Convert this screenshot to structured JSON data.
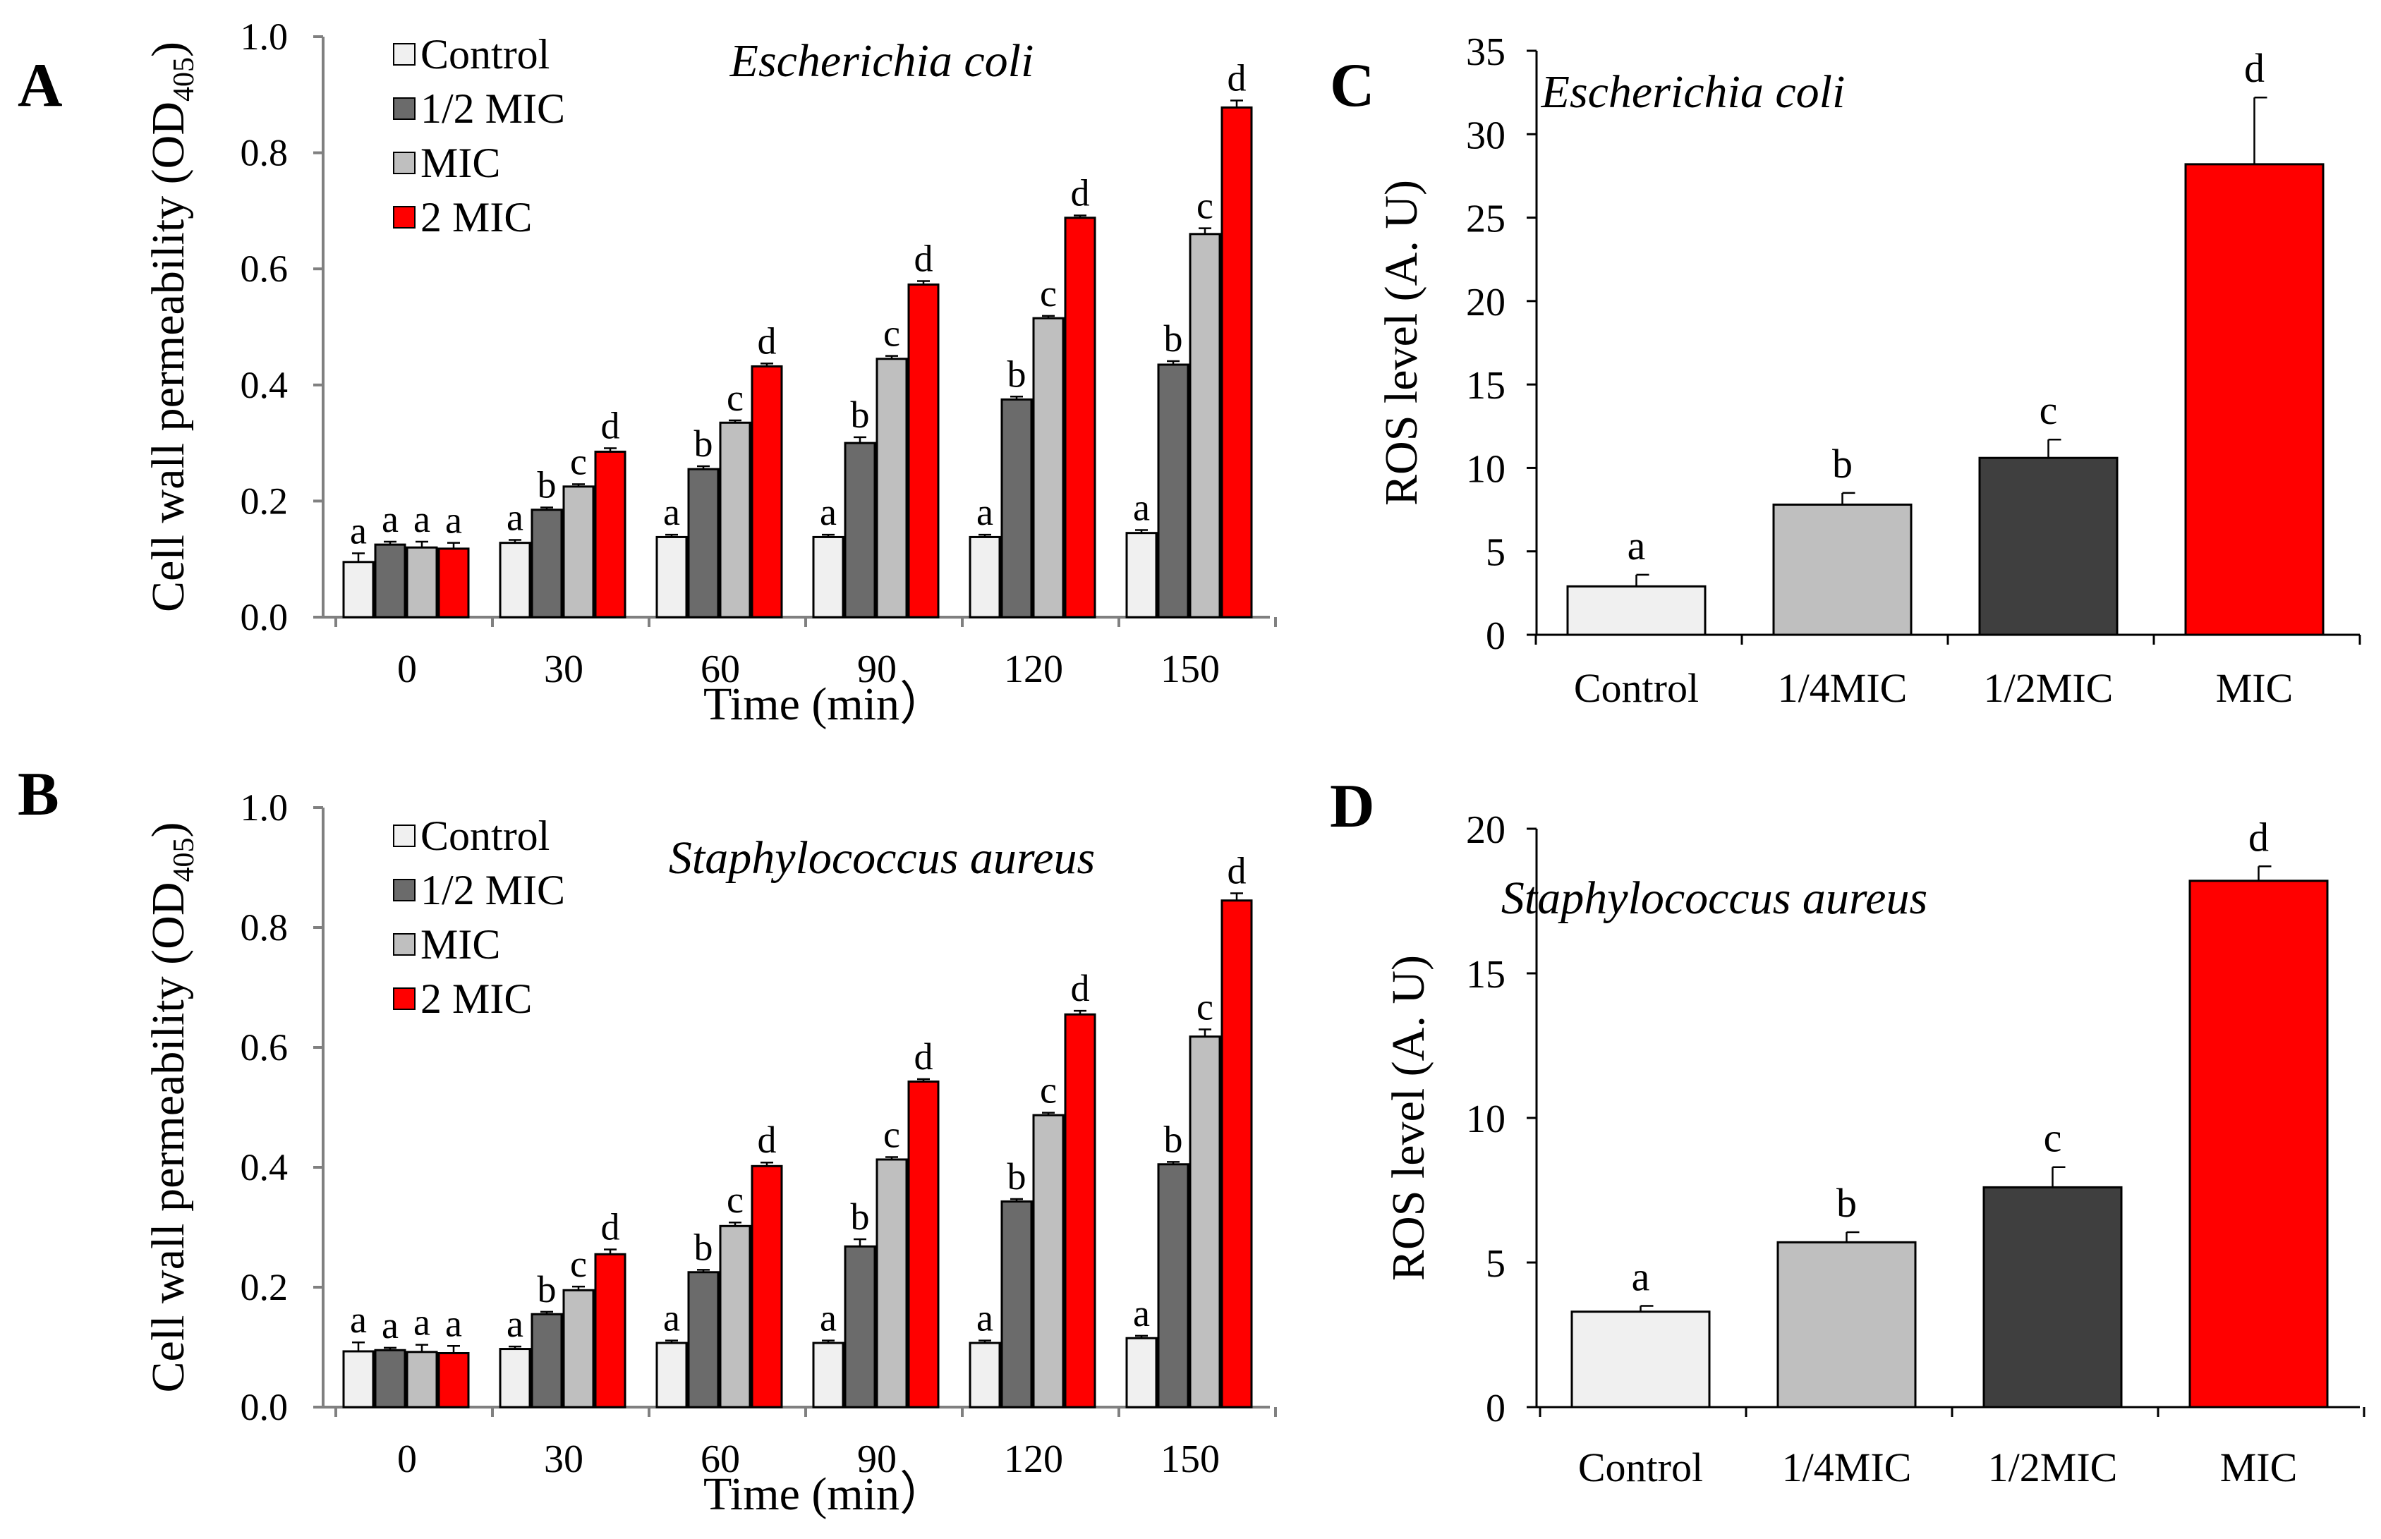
{
  "chart_data": [
    {
      "id": "A",
      "panel_label": "A",
      "type": "bar",
      "title": "Escherichia coli",
      "ylabel_main": "Cell wall permeability (OD",
      "ylabel_sub": "405",
      "ylabel_close": ")",
      "xlabel": "Time (min）",
      "ylim": [
        0,
        1.0
      ],
      "yticks": [
        "0.0",
        "0.2",
        "0.4",
        "0.6",
        "0.8",
        "1.0"
      ],
      "categories": [
        "0",
        "30",
        "60",
        "90",
        "120",
        "150"
      ],
      "legend": {
        "position": "top-left"
      },
      "series": [
        {
          "name": "Control",
          "color": "#f0f0f0",
          "values": [
            0.095,
            0.128,
            0.138,
            0.138,
            0.138,
            0.145
          ],
          "errors": [
            0.015,
            0.005,
            0.004,
            0.004,
            0.004,
            0.005
          ],
          "letters": [
            "a",
            "a",
            "a",
            "a",
            "a",
            "a"
          ]
        },
        {
          "name": "1/2 MIC",
          "color": "#6b6b6b",
          "values": [
            0.125,
            0.185,
            0.255,
            0.3,
            0.375,
            0.435
          ],
          "errors": [
            0.005,
            0.004,
            0.005,
            0.01,
            0.005,
            0.006
          ],
          "letters": [
            "a",
            "b",
            "b",
            "b",
            "b",
            "b"
          ]
        },
        {
          "name": "MIC",
          "color": "#bfbfbf",
          "values": [
            0.12,
            0.225,
            0.335,
            0.445,
            0.515,
            0.66
          ],
          "errors": [
            0.01,
            0.004,
            0.004,
            0.005,
            0.004,
            0.01
          ],
          "letters": [
            "a",
            "c",
            "c",
            "c",
            "c",
            "c"
          ]
        },
        {
          "name": "2 MIC",
          "color": "#ff0000",
          "values": [
            0.118,
            0.285,
            0.432,
            0.573,
            0.688,
            0.878
          ],
          "errors": [
            0.01,
            0.006,
            0.005,
            0.006,
            0.004,
            0.012
          ],
          "letters": [
            "a",
            "d",
            "d",
            "d",
            "d",
            "d"
          ]
        }
      ]
    },
    {
      "id": "B",
      "panel_label": "B",
      "type": "bar",
      "title": "Staphylococcus aureus",
      "ylabel_main": "Cell wall permeability (OD",
      "ylabel_sub": "405",
      "ylabel_close": ")",
      "xlabel": "Time (min）",
      "ylim": [
        0,
        1.0
      ],
      "yticks": [
        "0.0",
        "0.2",
        "0.4",
        "0.6",
        "0.8",
        "1.0"
      ],
      "categories": [
        "0",
        "30",
        "60",
        "90",
        "120",
        "150"
      ],
      "legend": {
        "position": "top-left"
      },
      "series": [
        {
          "name": "Control",
          "color": "#f0f0f0",
          "values": [
            0.093,
            0.097,
            0.107,
            0.107,
            0.107,
            0.115
          ],
          "errors": [
            0.015,
            0.004,
            0.004,
            0.004,
            0.004,
            0.004
          ],
          "letters": [
            "a",
            "a",
            "a",
            "a",
            "a",
            "a"
          ]
        },
        {
          "name": "1/2 MIC",
          "color": "#6b6b6b",
          "values": [
            0.095,
            0.155,
            0.225,
            0.268,
            0.343,
            0.405
          ],
          "errors": [
            0.004,
            0.004,
            0.004,
            0.012,
            0.004,
            0.004
          ],
          "letters": [
            "a",
            "b",
            "b",
            "b",
            "b",
            "b"
          ]
        },
        {
          "name": "MIC",
          "color": "#bfbfbf",
          "values": [
            0.092,
            0.195,
            0.302,
            0.413,
            0.487,
            0.618
          ],
          "errors": [
            0.012,
            0.006,
            0.006,
            0.004,
            0.004,
            0.012
          ],
          "letters": [
            "a",
            "c",
            "c",
            "c",
            "c",
            "c"
          ]
        },
        {
          "name": "2 MIC",
          "color": "#ff0000",
          "values": [
            0.09,
            0.255,
            0.402,
            0.543,
            0.655,
            0.845
          ],
          "errors": [
            0.012,
            0.008,
            0.006,
            0.004,
            0.006,
            0.012
          ],
          "letters": [
            "a",
            "d",
            "d",
            "d",
            "d",
            "d"
          ]
        }
      ]
    },
    {
      "id": "C",
      "panel_label": "C",
      "type": "bar",
      "title": "Escherichia coli",
      "ylabel": "ROS level (A. U)",
      "ylim": [
        0,
        35
      ],
      "yticks": [
        "0",
        "5",
        "10",
        "15",
        "20",
        "25",
        "30",
        "35"
      ],
      "categories": [
        "Control",
        "1/4MIC",
        "1/2MIC",
        "MIC"
      ],
      "colors": [
        "#f0f0f0",
        "#bfbfbf",
        "#3f3f3f",
        "#ff0000"
      ],
      "values": [
        2.9,
        7.8,
        10.6,
        28.2
      ],
      "errors": [
        0.7,
        0.7,
        1.1,
        4.0
      ],
      "letters": [
        "a",
        "b",
        "c",
        "d"
      ]
    },
    {
      "id": "D",
      "panel_label": "D",
      "type": "bar",
      "title": "Staphylococcus aureus",
      "ylabel": "ROS level (A. U)",
      "ylim": [
        0,
        20
      ],
      "yticks": [
        "0",
        "5",
        "10",
        "15",
        "20"
      ],
      "categories": [
        "Control",
        "1/4MIC",
        "1/2MIC",
        "MIC"
      ],
      "colors": [
        "#f0f0f0",
        "#bfbfbf",
        "#3f3f3f",
        "#ff0000"
      ],
      "values": [
        3.3,
        5.7,
        7.6,
        18.2
      ],
      "errors": [
        0.2,
        0.35,
        0.7,
        0.5
      ],
      "letters": [
        "a",
        "b",
        "c",
        "d"
      ]
    }
  ]
}
